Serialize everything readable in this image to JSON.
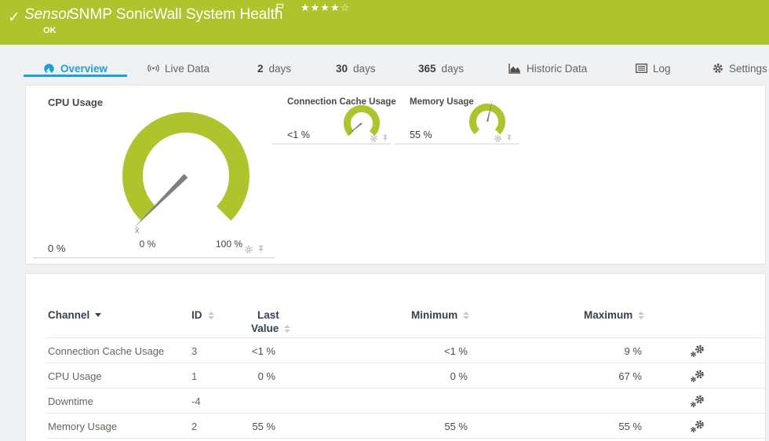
{
  "header": {
    "check_icon": "✓",
    "kind": "Sensor",
    "title": "SNMP SonicWall System Health",
    "status": "OK",
    "stars": "★★★★☆"
  },
  "tabs": {
    "overview": {
      "label": "Overview"
    },
    "live": {
      "label": "Live Data"
    },
    "d2": {
      "num": "2",
      "unit": "days"
    },
    "d30": {
      "num": "30",
      "unit": "days"
    },
    "d365": {
      "num": "365",
      "unit": "days"
    },
    "historic": {
      "label": "Historic Data"
    },
    "log": {
      "label": "Log"
    },
    "settings": {
      "label": "Settings"
    }
  },
  "gauges": [
    {
      "title": "CPU Usage",
      "value": "0 %",
      "percent": 0,
      "min_label": "0 %",
      "max_label": "100 %",
      "avg_marker": "x̄"
    },
    {
      "title": "Connection Cache Usage",
      "value": "<1 %",
      "percent": 2
    },
    {
      "title": "Memory Usage",
      "value": "55 %",
      "percent": 55
    }
  ],
  "table": {
    "headers": {
      "channel": "Channel",
      "id": "ID",
      "last1": "Last",
      "last2": "Value",
      "min": "Minimum",
      "max": "Maximum"
    },
    "rows": [
      {
        "channel": "Connection Cache Usage",
        "id": "3",
        "last": "<1 %",
        "min": "<1 %",
        "max": "9 %"
      },
      {
        "channel": "CPU Usage",
        "id": "1",
        "last": "0 %",
        "min": "0 %",
        "max": "67 %"
      },
      {
        "channel": "Downtime",
        "id": "-4",
        "last": "",
        "min": "",
        "max": ""
      },
      {
        "channel": "Memory Usage",
        "id": "2",
        "last": "55 %",
        "min": "55 %",
        "max": "55 %"
      }
    ]
  },
  "colors": {
    "brand_green": "#afc42c",
    "accent_blue": "#1b9fd9",
    "gauge_green": "#afc42c",
    "needle_gray": "#7f7f7f"
  }
}
